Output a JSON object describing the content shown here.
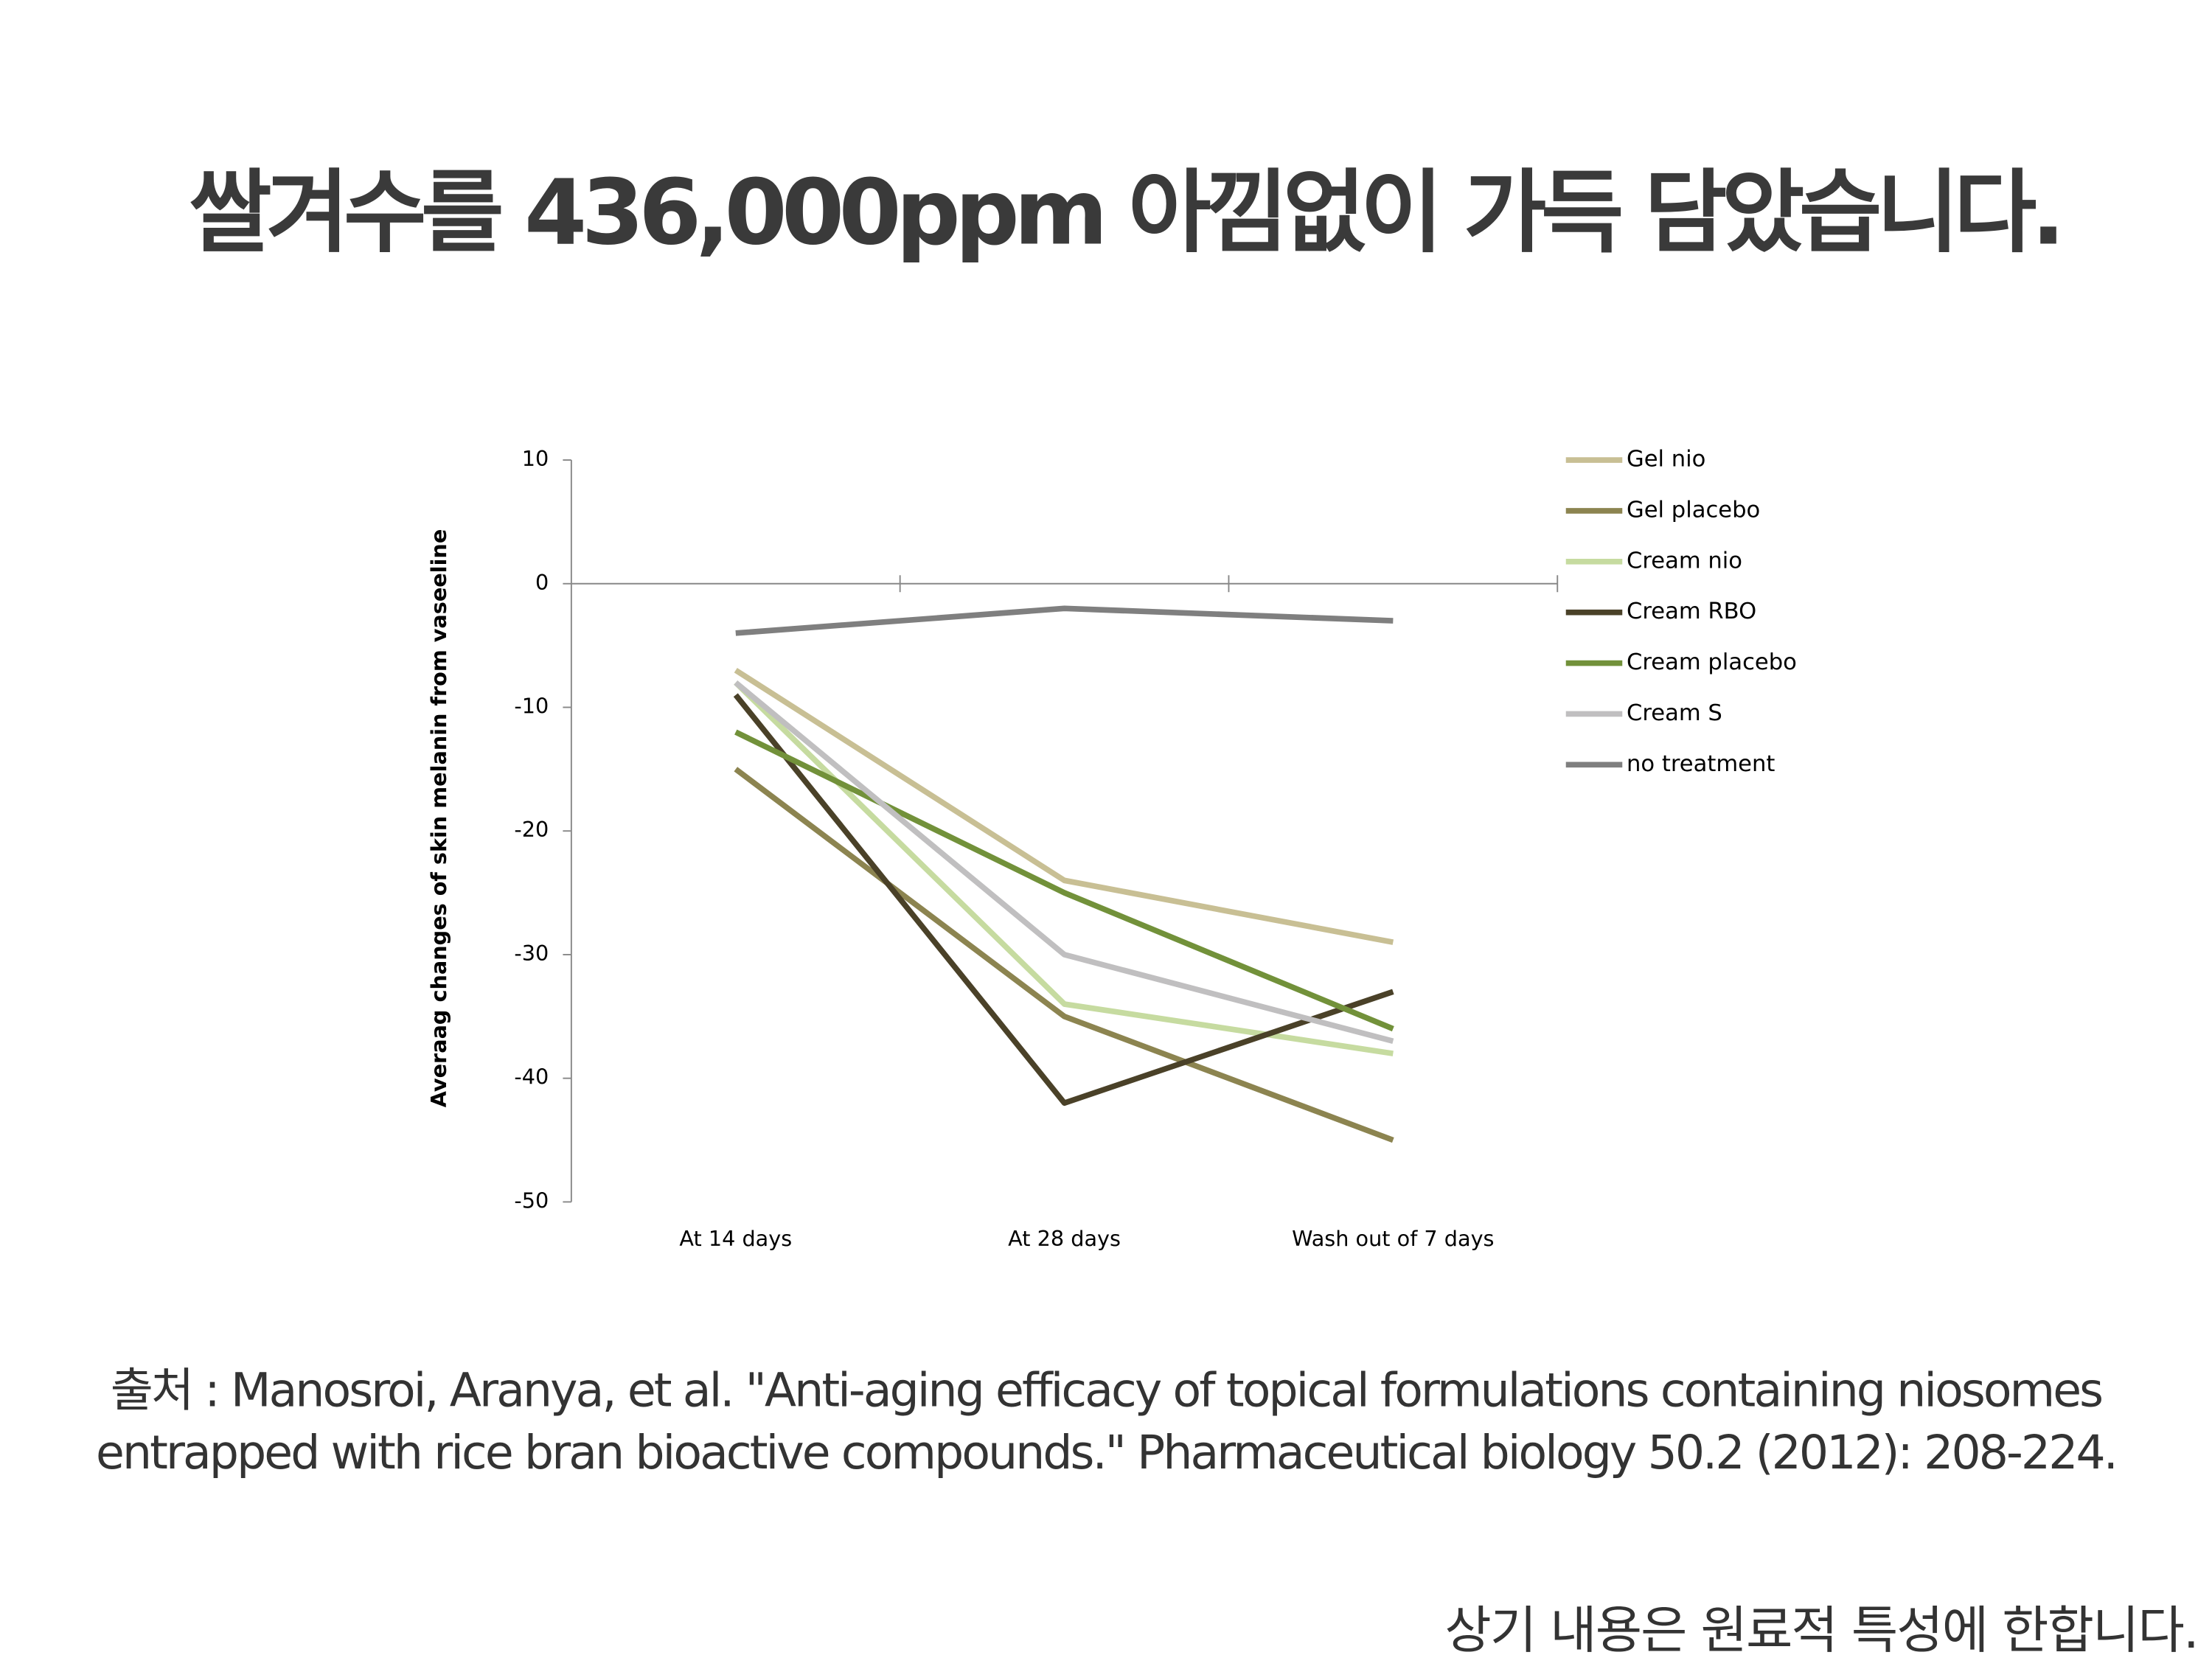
{
  "chart_data": {
    "type": "line",
    "title": "쌀겨수를 436,000ppm 아낌없이 가득 담았습니다.",
    "y_label": "Averaag changes of  skin melanin from vaseeline",
    "categories": [
      "At 14 days",
      "At 28 days",
      "Wash out of 7 days"
    ],
    "series": [
      {
        "name": "Gel nio",
        "color": "#c8bf94",
        "values": [
          -7,
          -24,
          -29
        ]
      },
      {
        "name": "Gel placebo",
        "color": "#8c8450",
        "values": [
          -15,
          -35,
          -45
        ]
      },
      {
        "name": "Cream nio",
        "color": "#c6dba0",
        "values": [
          -8,
          -34,
          -38
        ]
      },
      {
        "name": "Cream RBO",
        "color": "#4a4128",
        "values": [
          -9,
          -42,
          -33
        ]
      },
      {
        "name": "Cream placebo",
        "color": "#72913a",
        "values": [
          -12,
          -25,
          -36
        ]
      },
      {
        "name": "Cream S",
        "color": "#c0bfc0",
        "values": [
          -8,
          -30,
          -37
        ]
      },
      {
        "name": "no treatment",
        "color": "#7f7f7f",
        "values": [
          -4,
          -2,
          -3
        ]
      }
    ],
    "ylim": [
      -50,
      10
    ],
    "yticks": [
      -50,
      -40,
      -30,
      -20,
      -10,
      0,
      10
    ],
    "legend": "right"
  },
  "source": [
    "출처 : Manosroi, Aranya, et al.  \"Anti-aging efficacy of topical formulations containing niosomes",
    "entrapped with rice bran bioactive compounds.\" Pharmaceutical biology 50.2 (2012): 208-224."
  ],
  "note": "상기 내용은 원료적 특성에 한합니다."
}
